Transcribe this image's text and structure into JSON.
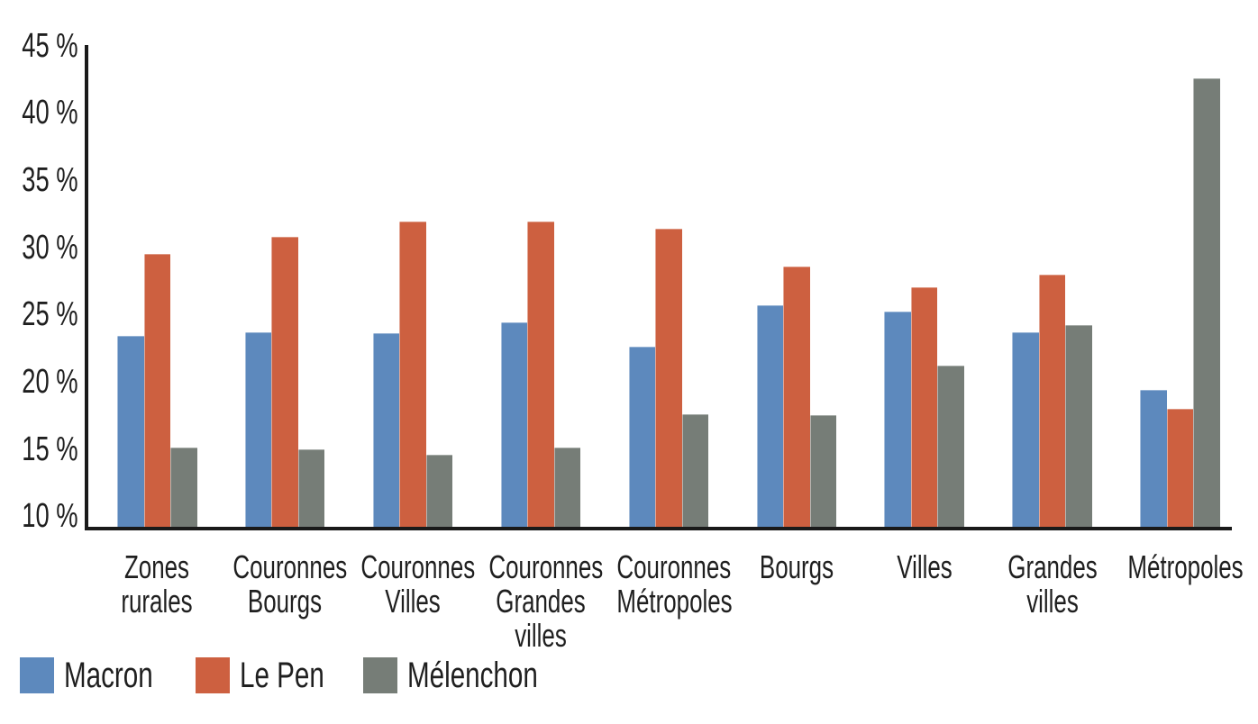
{
  "chart_data": {
    "type": "bar",
    "title": "",
    "xlabel": "",
    "ylabel": "",
    "ylim": [
      10,
      45
    ],
    "grid": false,
    "legend_position": "bottom-left",
    "background": "#ffffff",
    "axis_color": "#1a1a1a",
    "text_color": "#1f1f1f",
    "yticks": [
      45,
      40,
      35,
      30,
      25,
      20,
      15,
      10
    ],
    "ytick_labels": [
      "45 %",
      "40 %",
      "35 %",
      "30 %",
      "25 %",
      "20 %",
      "15 %",
      "10 %"
    ],
    "categories": [
      "Zones rurales",
      "Couronnes Bourgs",
      "Couronnes Villes",
      "Couronnes Grandes villes",
      "Couronnes Métropoles",
      "Bourgs",
      "Villes",
      "Grandes villes",
      "Métropoles"
    ],
    "category_label_lines": [
      [
        "Zones",
        "rurales"
      ],
      [
        "Couronnes",
        "Bourgs"
      ],
      [
        "Couronnes",
        "Villes"
      ],
      [
        "Couronnes",
        "Grandes",
        "villes"
      ],
      [
        "Couronnes",
        "Métropoles"
      ],
      [
        "Bourgs"
      ],
      [
        "Villes"
      ],
      [
        "Grandes",
        "villes"
      ],
      [
        "Métropoles"
      ]
    ],
    "series": [
      {
        "name": "Macron",
        "color": "#5d89bd",
        "values": [
          23.4,
          23.7,
          23.6,
          24.4,
          22.6,
          25.7,
          25.2,
          23.7,
          19.4
        ]
      },
      {
        "name": "Le Pen",
        "color": "#cd6040",
        "values": [
          29.5,
          30.8,
          31.9,
          31.9,
          31.4,
          28.6,
          27.0,
          28.0,
          18.0
        ]
      },
      {
        "name": "Mélenchon",
        "color": "#767d77",
        "values": [
          15.1,
          15.0,
          14.6,
          15.1,
          17.6,
          17.5,
          21.2,
          24.2,
          42.6
        ]
      }
    ]
  }
}
